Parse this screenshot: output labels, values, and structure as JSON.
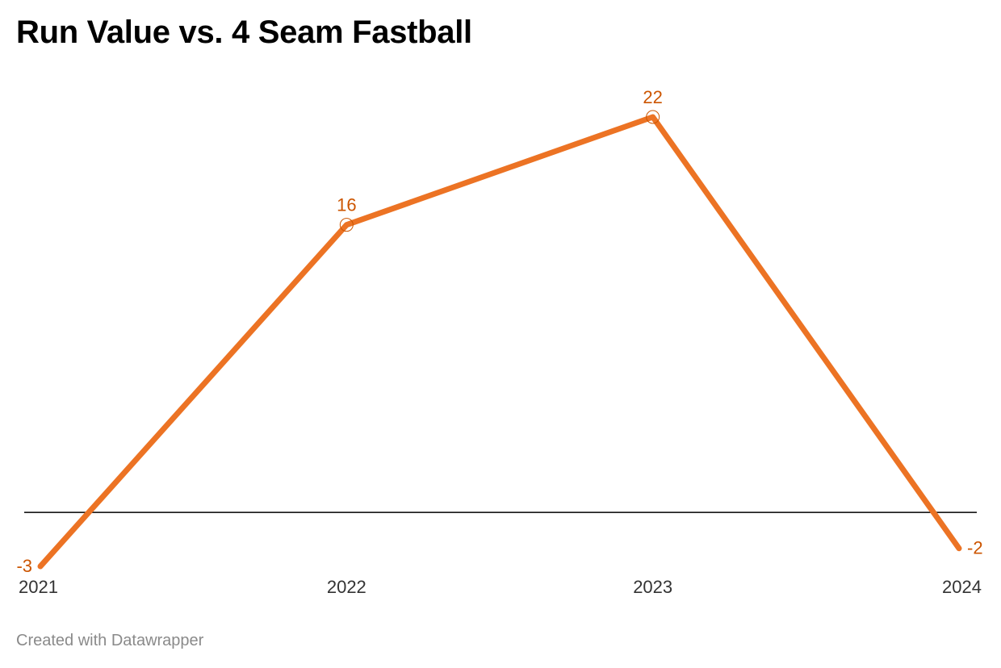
{
  "title": "Run Value vs. 4 Seam Fastball",
  "footer": "Created with Datawrapper",
  "colors": {
    "line": "#ec7324",
    "label": "#cc5500",
    "zero_line": "#000000",
    "tick_text": "#333333",
    "footer_text": "#8a8a8a"
  },
  "chart_data": {
    "type": "line",
    "title": "Run Value vs. 4 Seam Fastball",
    "xlabel": "",
    "ylabel": "",
    "x": [
      "2021",
      "2022",
      "2023",
      "2024"
    ],
    "series": [
      {
        "values": [
          -3,
          16,
          22,
          -2
        ],
        "labels": [
          "-3",
          "16",
          "22",
          "-2"
        ]
      }
    ],
    "ylim": [
      -3,
      22
    ],
    "reference_line": 0,
    "grid": false,
    "legend": "none"
  }
}
